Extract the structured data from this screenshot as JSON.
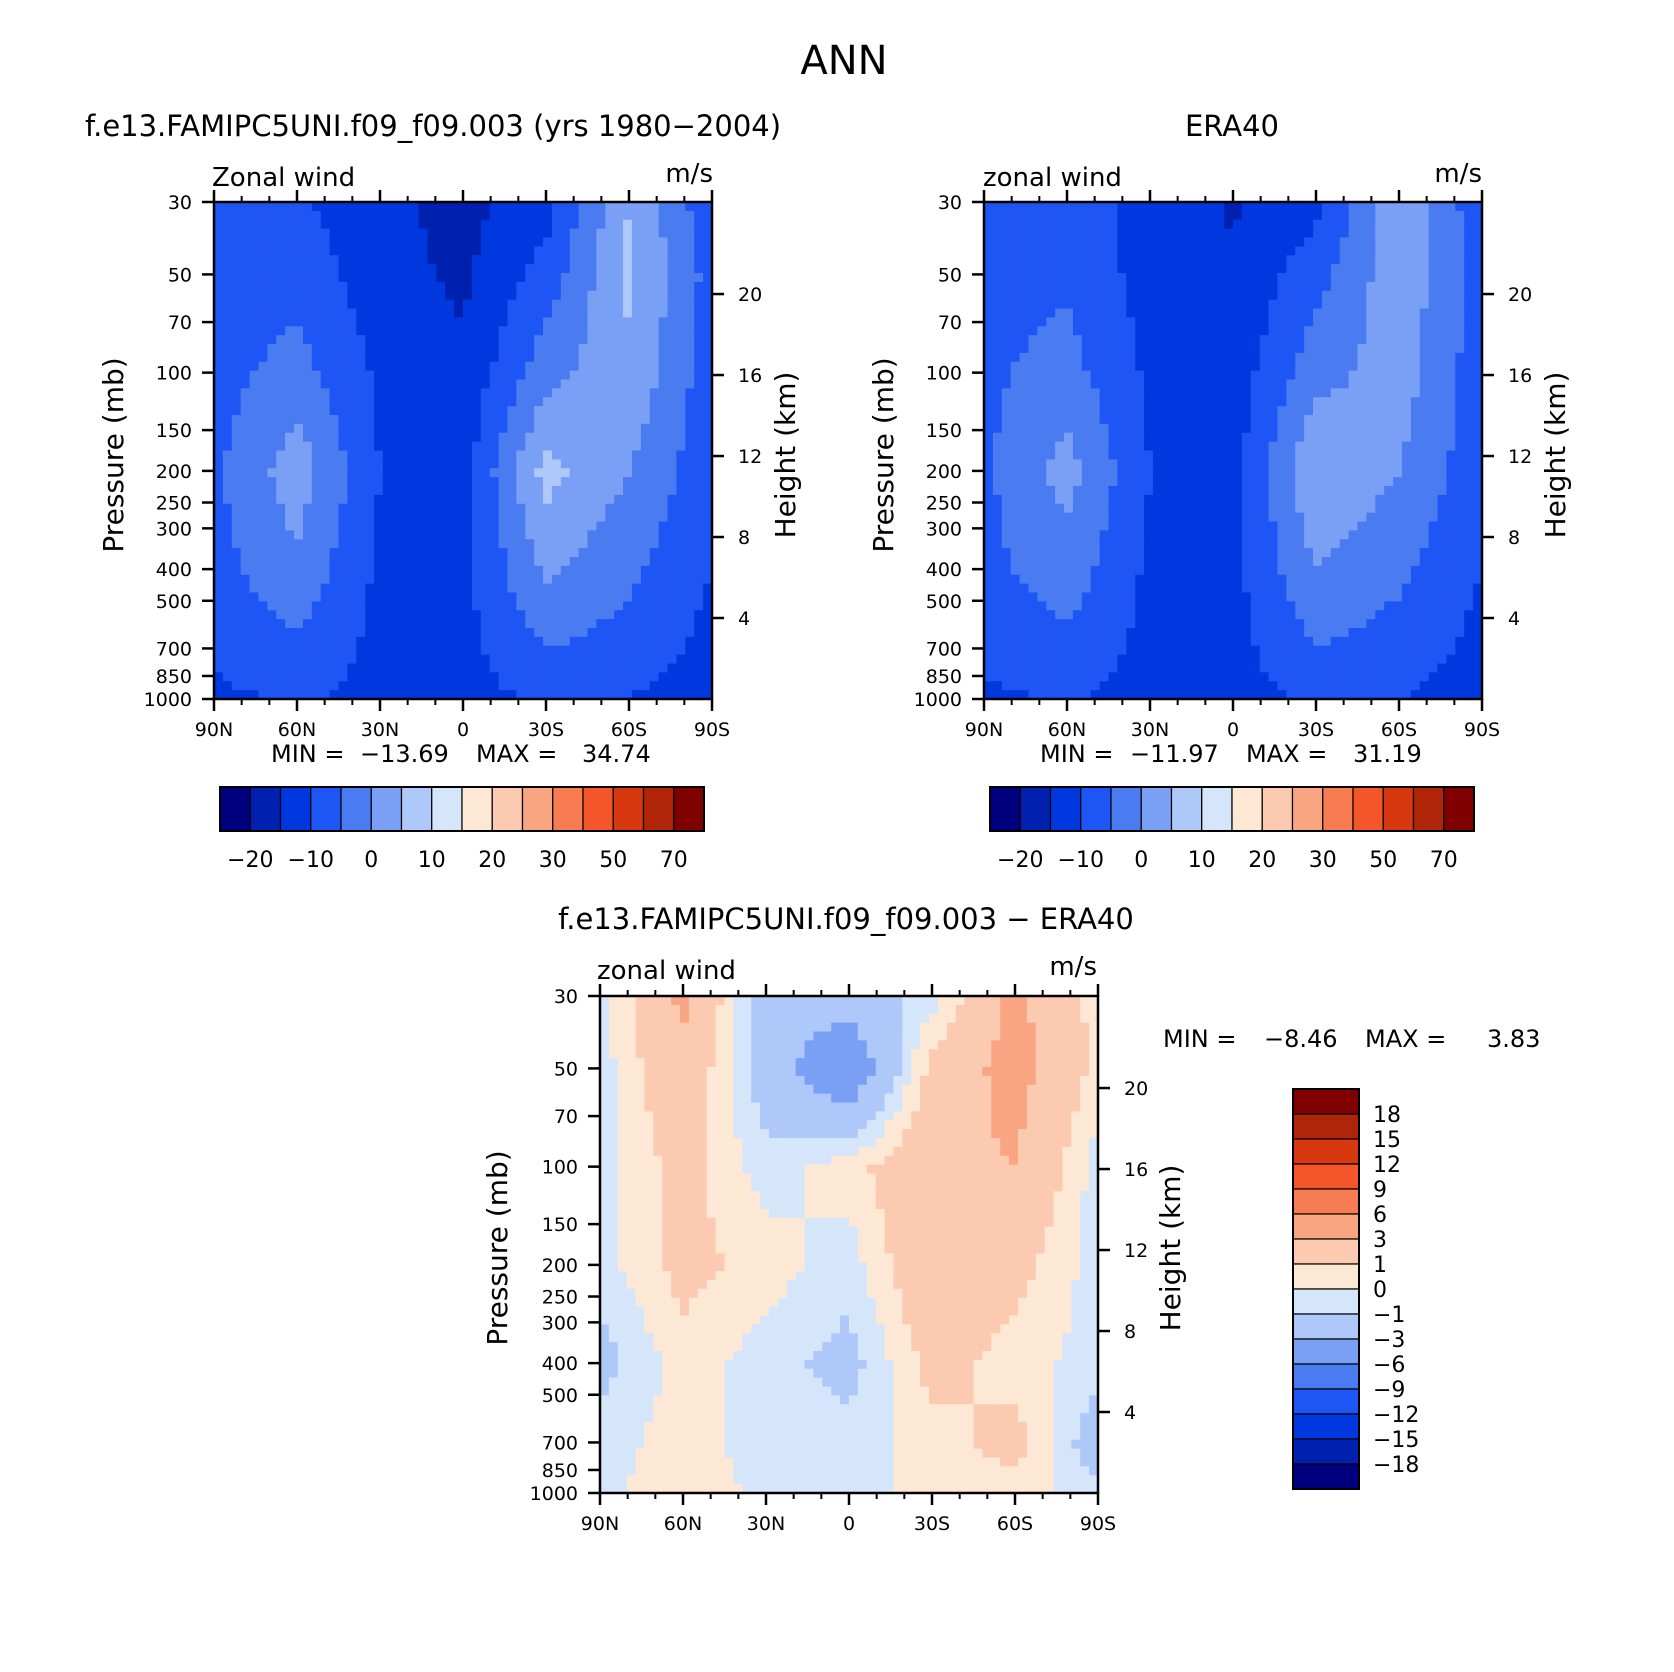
{
  "figure": {
    "title": "ANN"
  },
  "levels": {
    "full": [
      "-20",
      "-10",
      "0",
      "10",
      "20",
      "30",
      "50",
      "70"
    ],
    "diff": [
      "18",
      "15",
      "12",
      "9",
      "6",
      "3",
      "1",
      "0",
      "-1",
      "-3",
      "-6",
      "-9",
      "-12",
      "-15",
      "-18"
    ]
  },
  "colors": {
    "full": [
      "#00007e",
      "#0020b0",
      "#0038e0",
      "#1e55f5",
      "#4a7bf0",
      "#7aa0f5",
      "#aec8fa",
      "#d6e6fa",
      "#fde8d6",
      "#fccab0",
      "#f9a582",
      "#f87c52",
      "#f4562a",
      "#d83810",
      "#b02408",
      "#800000"
    ],
    "diff": [
      "#800000",
      "#b02408",
      "#d83810",
      "#f4562a",
      "#f87c52",
      "#f9a582",
      "#fccab0",
      "#fde8d6",
      "#d6e6fa",
      "#aec8fa",
      "#7aa0f5",
      "#4a7bf0",
      "#1e55f5",
      "#0038e0",
      "#0020b0",
      "#00007e"
    ]
  },
  "chart_data": [
    {
      "type": "heatmap",
      "title": "f.e13.FAMIPC5UNI.f09_f09.003 (yrs 1980−2004)",
      "left_label": "Zonal wind",
      "units": "m/s",
      "ylabel": "Pressure (mb)",
      "y2label": "Height (km)",
      "x_ticks": [
        "90N",
        "60N",
        "30N",
        "0",
        "30S",
        "60S",
        "90S"
      ],
      "y_ticks": [
        "30",
        "50",
        "70",
        "100",
        "150",
        "200",
        "250",
        "300",
        "400",
        "500",
        "700",
        "850",
        "1000"
      ],
      "y2_ticks": [
        "20",
        "16",
        "12",
        "8",
        "4"
      ],
      "stats": {
        "min_label": "MIN =",
        "min": "−13.69",
        "max_label": "MAX =",
        "max": "34.74"
      },
      "x": [
        90,
        60,
        30,
        0,
        -30,
        -60,
        -90
      ],
      "p": [
        30,
        50,
        100,
        200,
        400,
        700,
        1000
      ],
      "z": [
        [
          3,
          2,
          -8,
          -13,
          -4,
          30,
          2
        ],
        [
          4,
          6,
          -6,
          -12,
          4,
          32,
          6
        ],
        [
          6,
          14,
          -2,
          -8,
          16,
          28,
          4
        ],
        [
          8,
          26,
          0,
          -4,
          34,
          20,
          3
        ],
        [
          6,
          18,
          -2,
          -3,
          22,
          12,
          0
        ],
        [
          2,
          8,
          -3,
          -3,
          10,
          6,
          -3
        ],
        [
          -2,
          1,
          -3,
          -4,
          2,
          0,
          -6
        ]
      ]
    },
    {
      "type": "heatmap",
      "title": "ERA40",
      "left_label": "zonal wind",
      "units": "m/s",
      "ylabel": "Pressure (mb)",
      "y2label": "Height (km)",
      "x_ticks": [
        "90N",
        "60N",
        "30N",
        "0",
        "30S",
        "60S",
        "90S"
      ],
      "y_ticks": [
        "30",
        "50",
        "70",
        "100",
        "150",
        "200",
        "250",
        "300",
        "400",
        "500",
        "700",
        "850",
        "1000"
      ],
      "y2_ticks": [
        "20",
        "16",
        "12",
        "8",
        "4"
      ],
      "stats": {
        "min_label": "MIN =",
        "min": "−11.97",
        "max_label": "MAX =",
        "max": "31.19"
      },
      "x": [
        90,
        60,
        30,
        0,
        -30,
        -60,
        -90
      ],
      "p": [
        30,
        50,
        100,
        200,
        400,
        700,
        1000
      ],
      "z": [
        [
          5,
          5,
          -4,
          -11,
          -3,
          28,
          3
        ],
        [
          6,
          8,
          -4,
          -9,
          6,
          27,
          6
        ],
        [
          8,
          14,
          -2,
          -6,
          16,
          25,
          4
        ],
        [
          8,
          24,
          0,
          -4,
          30,
          20,
          3
        ],
        [
          7,
          16,
          -2,
          -3,
          20,
          12,
          0
        ],
        [
          3,
          7,
          -3,
          -4,
          10,
          6,
          -3
        ],
        [
          -2,
          1,
          -4,
          -4,
          2,
          0,
          -5
        ]
      ]
    },
    {
      "type": "heatmap",
      "title": "f.e13.FAMIPC5UNI.f09_f09.003 − ERA40",
      "left_label": "zonal wind",
      "units": "m/s",
      "ylabel": "Pressure (mb)",
      "y2label": "Height (km)",
      "x_ticks": [
        "90N",
        "60N",
        "30N",
        "0",
        "30S",
        "60S",
        "90S"
      ],
      "y_ticks": [
        "30",
        "50",
        "70",
        "100",
        "150",
        "200",
        "250",
        "300",
        "400",
        "500",
        "700",
        "850",
        "1000"
      ],
      "y2_ticks": [
        "20",
        "16",
        "12",
        "8",
        "4"
      ],
      "stats": {
        "min_label": "MIN =",
        "min": "−8.46",
        "max_label": "MAX =",
        "max": "3.83"
      },
      "x": [
        90,
        60,
        30,
        0,
        -30,
        -60,
        -90
      ],
      "p": [
        30,
        50,
        100,
        200,
        400,
        700,
        1000
      ],
      "z": [
        [
          -0.5,
          3.5,
          -2,
          -2,
          -0.5,
          3.5,
          0.5
        ],
        [
          -0.5,
          2.5,
          -2,
          -5,
          1.5,
          3.8,
          0.5
        ],
        [
          -0.5,
          1.5,
          -0.5,
          0.5,
          2.5,
          3,
          -0.5
        ],
        [
          -0.5,
          1.5,
          0.5,
          -0.5,
          2.5,
          1.5,
          -0.5
        ],
        [
          -1.5,
          0.5,
          -0.5,
          -1.5,
          1.5,
          0.5,
          -0.5
        ],
        [
          -0.5,
          0.5,
          -0.5,
          -0.5,
          0.5,
          1.5,
          -2
        ],
        [
          -0.2,
          0.5,
          -0.2,
          -0.3,
          0.2,
          0.5,
          -0.5
        ]
      ]
    }
  ]
}
